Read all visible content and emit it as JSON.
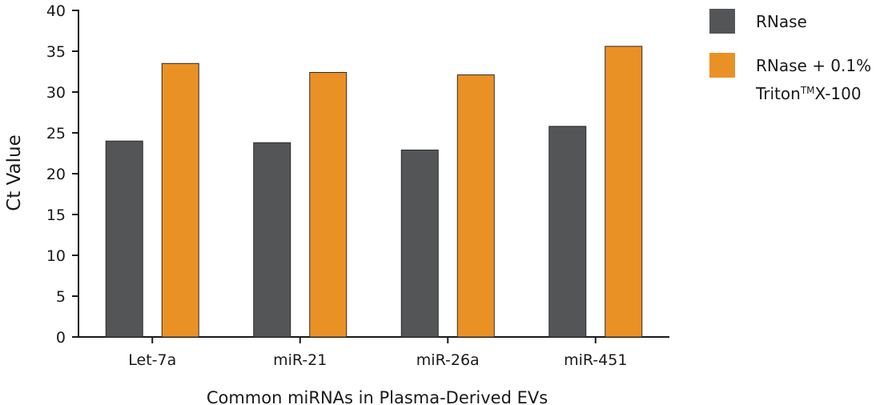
{
  "chart_data": {
    "type": "bar",
    "categories": [
      "Let-7a",
      "miR-21",
      "miR-26a",
      "miR-451"
    ],
    "series": [
      {
        "name": "RNase",
        "values": [
          24.0,
          23.8,
          22.9,
          25.8
        ],
        "color": "#545556"
      },
      {
        "name": "RNase + 0.1% Triton™X-100",
        "values": [
          33.5,
          32.4,
          32.1,
          35.6
        ],
        "color": "#ea9125"
      }
    ],
    "title": "",
    "xlabel": "Common miRNAs in Plasma-Derived EVs",
    "ylabel": "Ct Value",
    "ylim": [
      0,
      40
    ],
    "yticks": [
      0,
      5,
      10,
      15,
      20,
      25,
      30,
      35,
      40
    ],
    "grid": false,
    "legend_position": "top-right",
    "legend": {
      "items": [
        {
          "lines": [
            "RNase"
          ]
        },
        {
          "lines": [
            "RNase + 0.1%",
            "Triton",
            "TM",
            "X-100"
          ]
        }
      ]
    }
  }
}
